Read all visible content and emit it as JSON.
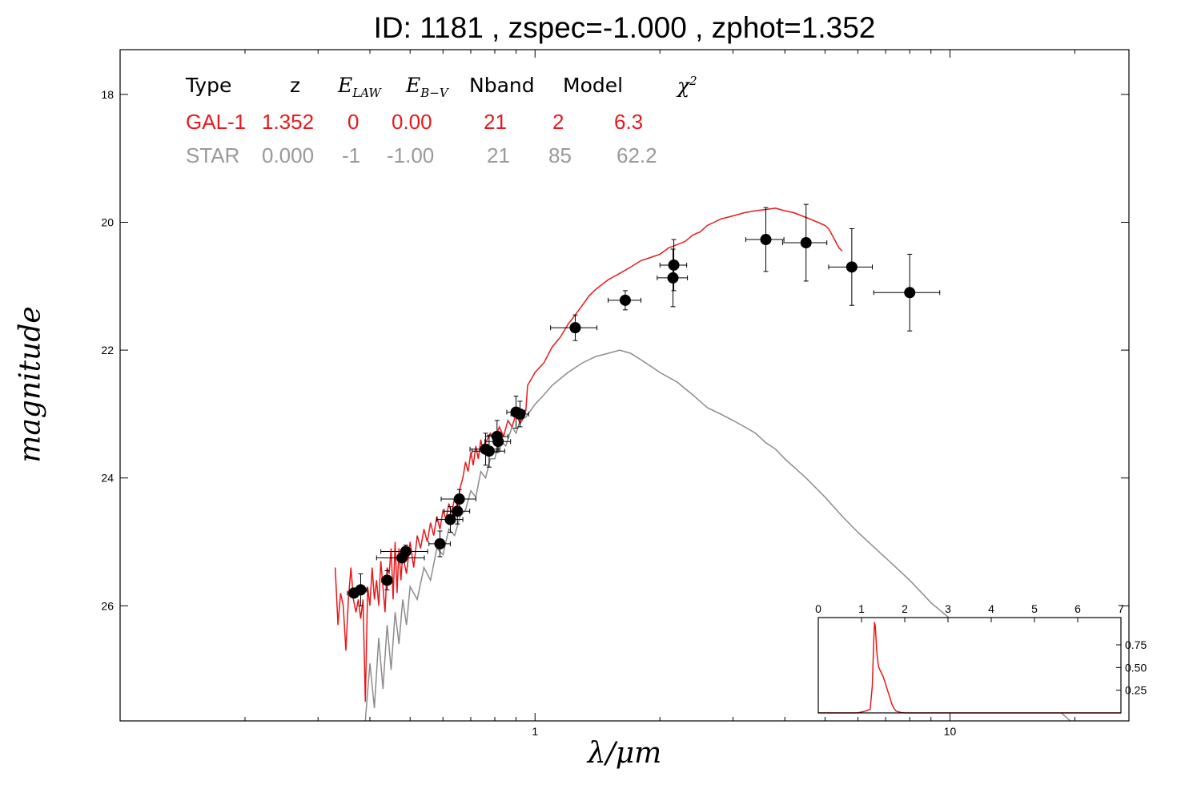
{
  "chart_data": {
    "type": "scatter",
    "title": "ID:  1181  , zspec=-1.000 , zphot=1.352",
    "xlabel": "λ/μm",
    "ylabel": "magnitude",
    "xscale": "log",
    "xlim": [
      0.1,
      27
    ],
    "ylim": [
      27.8,
      17.3
    ],
    "x_ticks": [
      1,
      10
    ],
    "y_ticks": [
      18,
      20,
      22,
      24,
      26
    ],
    "colors": {
      "galaxy": "#e8191b",
      "star": "#8c8c8c",
      "points": "#000000"
    },
    "fit_table": {
      "headers": [
        "Type",
        "z",
        "E_LAW",
        "E_B-V",
        "Nband",
        "Model",
        "χ2"
      ],
      "rows": [
        {
          "color": "#e8191b",
          "cells": [
            "GAL-1",
            "1.352",
            "0",
            "0.00",
            "21",
            "2",
            "6.3"
          ]
        },
        {
          "color": "#999999",
          "cells": [
            "STAR",
            "0.000",
            "-1",
            "-1.00",
            "21",
            "85",
            "62.2"
          ]
        }
      ]
    },
    "series": [
      {
        "name": "photometry",
        "kind": "errorbar",
        "points": [
          {
            "x": 0.366,
            "y": 25.8,
            "xerr": 0.013,
            "yerr": 0.05
          },
          {
            "x": 0.38,
            "y": 25.75,
            "xerr": 0.013,
            "yerr": 0.25
          },
          {
            "x": 0.44,
            "y": 25.6,
            "xerr": 0.013,
            "yerr": 0.15
          },
          {
            "x": 0.478,
            "y": 25.25,
            "xerr": 0.063,
            "yerr": 0.05
          },
          {
            "x": 0.488,
            "y": 25.15,
            "xerr": 0.063,
            "yerr": 0.1
          },
          {
            "x": 0.59,
            "y": 25.03,
            "xerr": 0.035,
            "yerr": 0.2
          },
          {
            "x": 0.625,
            "y": 24.65,
            "xerr": 0.045,
            "yerr": 0.2
          },
          {
            "x": 0.65,
            "y": 24.52,
            "xerr": 0.046,
            "yerr": 0.2
          },
          {
            "x": 0.657,
            "y": 24.33,
            "xerr": 0.063,
            "yerr": 0.15
          },
          {
            "x": 0.76,
            "y": 23.55,
            "xerr": 0.063,
            "yerr": 0.25
          },
          {
            "x": 0.775,
            "y": 23.58,
            "xerr": 0.07,
            "yerr": 0.25
          },
          {
            "x": 0.81,
            "y": 23.35,
            "xerr": 0.05,
            "yerr": 0.25
          },
          {
            "x": 0.815,
            "y": 23.43,
            "xerr": 0.058,
            "yerr": 0.15
          },
          {
            "x": 0.9,
            "y": 22.97,
            "xerr": 0.045,
            "yerr": 0.25
          },
          {
            "x": 0.92,
            "y": 23.0,
            "xerr": 0.045,
            "yerr": 0.2
          },
          {
            "x": 1.25,
            "y": 21.65,
            "xerr": 0.16,
            "yerr": 0.2
          },
          {
            "x": 1.65,
            "y": 21.22,
            "xerr": 0.15,
            "yerr": 0.15
          },
          {
            "x": 2.15,
            "y": 20.87,
            "xerr": 0.18,
            "yerr": 0.45
          },
          {
            "x": 2.16,
            "y": 20.67,
            "xerr": 0.16,
            "yerr": 0.4
          },
          {
            "x": 3.6,
            "y": 20.27,
            "xerr": 0.38,
            "yerr": 0.5
          },
          {
            "x": 4.5,
            "y": 20.32,
            "xerr": 0.55,
            "yerr": 0.6
          },
          {
            "x": 5.8,
            "y": 20.7,
            "xerr": 0.7,
            "yerr": 0.6
          },
          {
            "x": 8.0,
            "y": 21.1,
            "xerr": 1.45,
            "yerr": 0.6
          }
        ]
      },
      {
        "name": "GAL-1",
        "kind": "line",
        "x": [
          0.33,
          0.335,
          0.34,
          0.345,
          0.35,
          0.355,
          0.36,
          0.365,
          0.37,
          0.375,
          0.38,
          0.385,
          0.39,
          0.395,
          0.4,
          0.405,
          0.41,
          0.415,
          0.42,
          0.425,
          0.43,
          0.435,
          0.44,
          0.445,
          0.45,
          0.455,
          0.46,
          0.465,
          0.47,
          0.475,
          0.48,
          0.49,
          0.5,
          0.51,
          0.52,
          0.53,
          0.54,
          0.55,
          0.56,
          0.57,
          0.58,
          0.59,
          0.6,
          0.61,
          0.62,
          0.63,
          0.64,
          0.65,
          0.66,
          0.67,
          0.68,
          0.69,
          0.7,
          0.71,
          0.72,
          0.73,
          0.74,
          0.75,
          0.76,
          0.78,
          0.8,
          0.82,
          0.84,
          0.86,
          0.88,
          0.9,
          0.92,
          0.94,
          0.95,
          0.96,
          0.98,
          1.0,
          1.05,
          1.1,
          1.15,
          1.2,
          1.25,
          1.3,
          1.35,
          1.4,
          1.5,
          1.6,
          1.7,
          1.8,
          1.9,
          2.0,
          2.1,
          2.2,
          2.3,
          2.4,
          2.5,
          2.6,
          2.7,
          2.8,
          3.0,
          3.2,
          3.4,
          3.6,
          3.8,
          4.0,
          4.2,
          4.4,
          4.6,
          4.8,
          5.0,
          5.1,
          5.2,
          5.3,
          5.4,
          5.5
        ],
        "y": [
          25.4,
          26.3,
          25.8,
          26.0,
          26.7,
          25.9,
          25.4,
          25.9,
          26.1,
          25.9,
          26.2,
          25.9,
          27.5,
          25.7,
          26.0,
          25.4,
          25.9,
          25.6,
          26.0,
          25.3,
          25.7,
          26.1,
          25.4,
          25.5,
          25.1,
          25.9,
          25.0,
          25.8,
          25.1,
          25.6,
          25.2,
          25.5,
          25.0,
          25.4,
          24.9,
          25.1,
          24.8,
          25.0,
          24.7,
          24.9,
          24.6,
          24.8,
          24.5,
          24.65,
          24.4,
          24.55,
          24.3,
          24.45,
          24.15,
          24.0,
          23.75,
          23.9,
          23.6,
          23.8,
          23.5,
          23.7,
          23.4,
          23.6,
          23.45,
          23.3,
          23.4,
          23.2,
          23.35,
          23.1,
          23.2,
          23.0,
          23.15,
          23.05,
          22.95,
          22.55,
          22.45,
          22.35,
          22.2,
          21.95,
          21.8,
          21.6,
          21.45,
          21.3,
          21.15,
          21.05,
          20.9,
          20.8,
          20.7,
          20.6,
          20.55,
          20.5,
          20.4,
          20.35,
          20.3,
          20.2,
          20.15,
          20.05,
          20.0,
          19.95,
          19.9,
          19.85,
          19.82,
          19.8,
          19.78,
          19.82,
          19.85,
          19.9,
          19.95,
          20.0,
          20.05,
          20.1,
          20.2,
          20.3,
          20.4,
          20.45
        ]
      },
      {
        "name": "STAR",
        "kind": "line",
        "x": [
          0.39,
          0.4,
          0.41,
          0.42,
          0.43,
          0.44,
          0.45,
          0.46,
          0.47,
          0.48,
          0.49,
          0.5,
          0.52,
          0.54,
          0.56,
          0.58,
          0.6,
          0.62,
          0.64,
          0.66,
          0.68,
          0.7,
          0.72,
          0.74,
          0.76,
          0.78,
          0.8,
          0.82,
          0.85,
          0.88,
          0.9,
          0.92,
          0.95,
          1.0,
          1.05,
          1.1,
          1.2,
          1.3,
          1.4,
          1.5,
          1.6,
          1.7,
          1.8,
          1.9,
          2.0,
          2.2,
          2.4,
          2.6,
          2.8,
          3.0,
          3.2,
          3.4,
          3.6,
          3.8,
          4.0,
          4.5,
          5.0,
          5.5,
          6.0,
          7.0,
          8.0,
          9.0,
          10.0,
          12.0,
          14.0,
          16.0,
          18.0,
          19.5
        ],
        "y": [
          27.8,
          26.9,
          27.6,
          26.5,
          27.3,
          26.3,
          27.0,
          26.1,
          26.6,
          25.9,
          26.3,
          25.7,
          25.9,
          25.4,
          25.6,
          25.1,
          25.2,
          24.8,
          24.9,
          24.6,
          24.5,
          24.2,
          24.3,
          23.9,
          24.0,
          23.7,
          23.7,
          23.4,
          23.5,
          23.2,
          23.3,
          23.1,
          23.05,
          22.85,
          22.7,
          22.55,
          22.35,
          22.2,
          22.1,
          22.05,
          22.0,
          22.05,
          22.15,
          22.25,
          22.35,
          22.5,
          22.7,
          22.9,
          23.0,
          23.1,
          23.2,
          23.3,
          23.45,
          23.55,
          23.7,
          24.0,
          24.3,
          24.6,
          24.85,
          25.25,
          25.6,
          25.95,
          26.2,
          26.6,
          27.0,
          27.3,
          27.6,
          27.8
        ]
      }
    ],
    "inset": {
      "type": "line",
      "xlim": [
        0,
        7
      ],
      "ylim": [
        0,
        1.05
      ],
      "x_ticks": [
        0,
        1,
        2,
        3,
        4,
        5,
        6,
        7
      ],
      "y_ticks": [
        0.25,
        0.5,
        0.75
      ],
      "y_tick_labels": [
        "0.25",
        "0.50",
        "0.75"
      ],
      "x": [
        0,
        0.9,
        1.0,
        1.1,
        1.2,
        1.25,
        1.28,
        1.3,
        1.32,
        1.35,
        1.38,
        1.4,
        1.45,
        1.5,
        1.55,
        1.6,
        1.65,
        1.7,
        1.75,
        1.8,
        1.9,
        2.0,
        7.0
      ],
      "y": [
        0,
        0,
        0.01,
        0.02,
        0.04,
        0.3,
        0.75,
        1.0,
        0.95,
        0.7,
        0.55,
        0.5,
        0.45,
        0.4,
        0.33,
        0.25,
        0.18,
        0.1,
        0.05,
        0.02,
        0.005,
        0,
        0
      ]
    }
  }
}
